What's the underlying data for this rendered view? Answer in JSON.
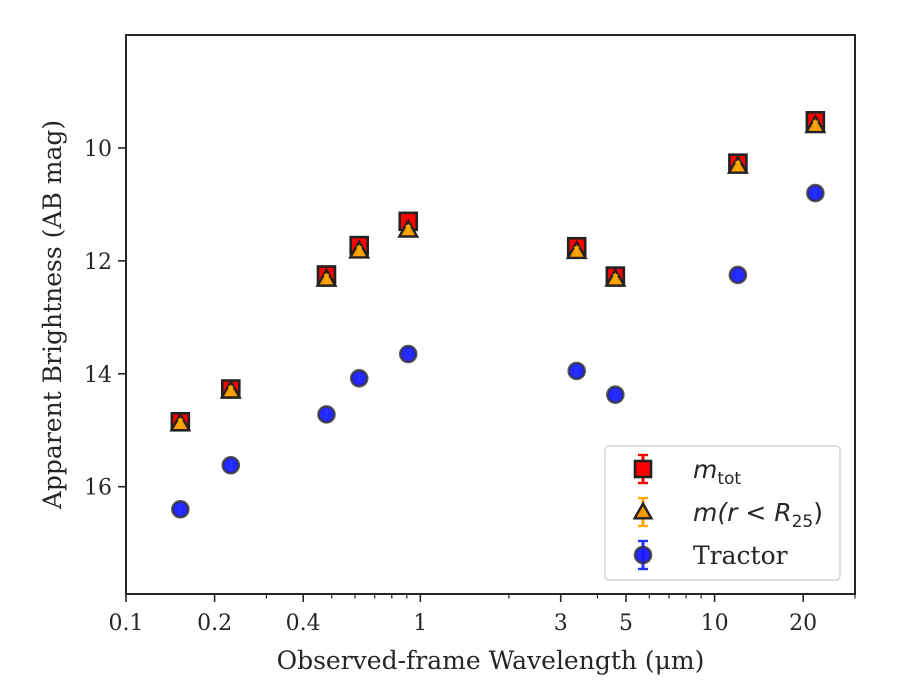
{
  "chart_data": {
    "type": "scatter",
    "xlabel": "Observed-frame Wavelength (μm)",
    "ylabel": "Apparent Brightness (AB mag)",
    "xscale": "log",
    "xlim": [
      0.1,
      30
    ],
    "ylim": [
      17.9,
      8.0
    ],
    "y_inverted": true,
    "grid": false,
    "legend_position": "lower-right",
    "x_ticks": [
      {
        "value": 0.1,
        "label": "0.1"
      },
      {
        "value": 0.2,
        "label": "0.2"
      },
      {
        "value": 0.4,
        "label": "0.4"
      },
      {
        "value": 1,
        "label": "1"
      },
      {
        "value": 3,
        "label": "3"
      },
      {
        "value": 5,
        "label": "5"
      },
      {
        "value": 10,
        "label": "10"
      },
      {
        "value": 20,
        "label": "20"
      }
    ],
    "y_ticks": [
      {
        "value": 10,
        "label": "10"
      },
      {
        "value": 12,
        "label": "12"
      },
      {
        "value": 14,
        "label": "14"
      },
      {
        "value": 16,
        "label": "16"
      }
    ],
    "series": [
      {
        "name": "m_tot",
        "legend_main": "m",
        "legend_sub": "tot",
        "marker": "square",
        "color": "#ff0000",
        "error_color": "#ff0000",
        "points": [
          {
            "x": 0.153,
            "y": 14.85
          },
          {
            "x": 0.227,
            "y": 14.27
          },
          {
            "x": 0.48,
            "y": 12.25
          },
          {
            "x": 0.62,
            "y": 11.73
          },
          {
            "x": 0.91,
            "y": 11.3
          },
          {
            "x": 3.4,
            "y": 11.75
          },
          {
            "x": 4.6,
            "y": 12.27
          },
          {
            "x": 12.0,
            "y": 10.27
          },
          {
            "x": 22.0,
            "y": 9.52
          }
        ]
      },
      {
        "name": "m(r < R_25)",
        "legend_main": "m(r < R",
        "legend_sub": "25",
        "legend_after": ")",
        "marker": "triangle",
        "color": "#ff9900",
        "error_color": "#ffaa00",
        "points": [
          {
            "x": 0.153,
            "y": 14.88
          },
          {
            "x": 0.227,
            "y": 14.3
          },
          {
            "x": 0.48,
            "y": 12.32
          },
          {
            "x": 0.62,
            "y": 11.82
          },
          {
            "x": 0.91,
            "y": 11.45
          },
          {
            "x": 3.4,
            "y": 11.83
          },
          {
            "x": 4.6,
            "y": 12.32
          },
          {
            "x": 12.0,
            "y": 10.32
          },
          {
            "x": 22.0,
            "y": 9.6
          }
        ]
      },
      {
        "name": "Tractor",
        "legend_main": "Tractor",
        "marker": "circle",
        "color": "#1a1aff",
        "error_color": "#2233ff",
        "points": [
          {
            "x": 0.153,
            "y": 16.4
          },
          {
            "x": 0.227,
            "y": 15.62
          },
          {
            "x": 0.48,
            "y": 14.72
          },
          {
            "x": 0.62,
            "y": 14.08
          },
          {
            "x": 0.91,
            "y": 13.65
          },
          {
            "x": 3.4,
            "y": 13.95
          },
          {
            "x": 4.6,
            "y": 14.37
          },
          {
            "x": 12.0,
            "y": 12.25
          },
          {
            "x": 22.0,
            "y": 10.8
          }
        ]
      }
    ]
  }
}
